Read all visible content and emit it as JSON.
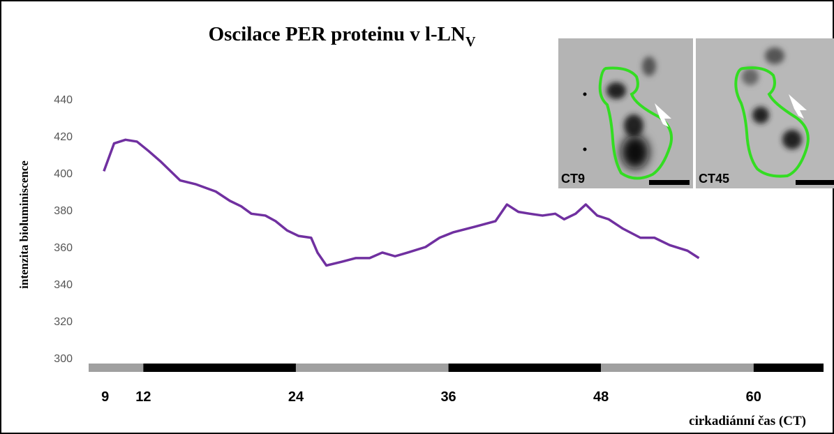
{
  "chart_data": {
    "type": "line",
    "title": "Oscilace PER proteinu v l-LN",
    "title_subscript": "V",
    "y_label": "intenzita bioluminiscence",
    "x_label": "cirkadiánní čas (CT)",
    "xlim": [
      7.7,
      65.5
    ],
    "xticks": [
      9,
      12,
      24,
      36,
      48,
      60
    ],
    "ylim": [
      300,
      440
    ],
    "yticks": [
      300,
      320,
      340,
      360,
      380,
      400,
      420,
      440
    ],
    "phases": [
      {
        "start": 7.7,
        "end": 12,
        "color": "#a0a0a0"
      },
      {
        "start": 12,
        "end": 24,
        "color": "#000000"
      },
      {
        "start": 24,
        "end": 36,
        "color": "#a0a0a0"
      },
      {
        "start": 36,
        "end": 48,
        "color": "#000000"
      },
      {
        "start": 48,
        "end": 60,
        "color": "#a0a0a0"
      },
      {
        "start": 60,
        "end": 65.5,
        "color": "#000000"
      }
    ],
    "series": [
      {
        "color": "#7030a0",
        "x": [
          8.9,
          9.7,
          10.6,
          11.5,
          12.4,
          13.4,
          14.9,
          16.1,
          17.7,
          18.8,
          19.7,
          20.5,
          21.6,
          22.4,
          23.3,
          24.2,
          25.2,
          25.7,
          26.4,
          27.6,
          28.7,
          29.8,
          30.8,
          31.8,
          32.8,
          34.2,
          35.3,
          36.4,
          38.1,
          39.7,
          40.6,
          41.5,
          42.4,
          43.4,
          44.4,
          45.1,
          46.0,
          46.8,
          47.7,
          48.6,
          49.7,
          51.1,
          52.2,
          53.4,
          54.8,
          55.7
        ],
        "values": [
          401,
          416,
          418,
          417,
          412,
          406,
          396,
          394,
          390,
          385,
          382,
          378,
          377,
          374,
          369,
          366,
          365,
          357,
          350,
          352,
          354,
          354,
          357,
          355,
          357,
          360,
          365,
          368,
          371,
          374,
          383,
          379,
          378,
          377,
          378,
          375,
          378,
          383,
          377,
          375,
          370,
          365,
          365,
          361,
          358,
          354
        ]
      }
    ]
  },
  "insets": [
    {
      "label": "CT9"
    },
    {
      "label": "CT45"
    }
  ]
}
